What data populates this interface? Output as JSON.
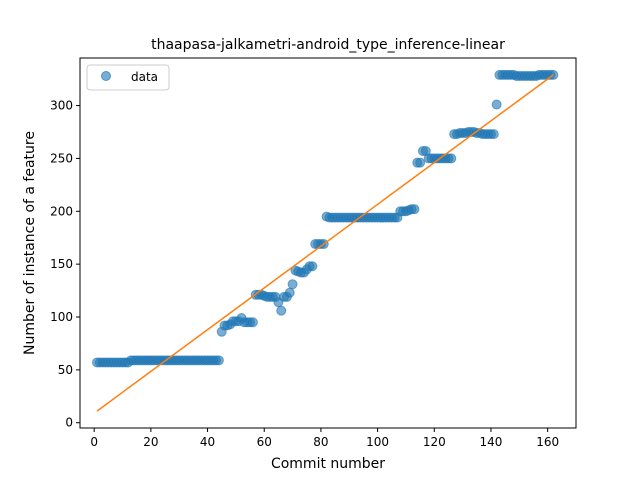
{
  "chart_data": {
    "type": "scatter",
    "title": "thaapasa-jalkametri-android_type_inference-linear",
    "xlabel": "Commit number",
    "ylabel": "Number of instance of a feature",
    "xlim": [
      -5,
      170
    ],
    "ylim": [
      -5,
      345
    ],
    "xticks": [
      0,
      20,
      40,
      60,
      80,
      100,
      120,
      140,
      160
    ],
    "yticks": [
      0,
      50,
      100,
      150,
      200,
      250,
      300
    ],
    "grid": false,
    "legend": {
      "placement": "top-left",
      "entries": [
        "data"
      ]
    },
    "colors": {
      "scatter": "#1f77b4",
      "fit": "#ff7f0e"
    },
    "fit_line": {
      "x": [
        1,
        162
      ],
      "y": [
        11,
        329
      ]
    },
    "series": [
      {
        "name": "data",
        "points": [
          [
            1,
            57
          ],
          [
            2,
            57
          ],
          [
            3,
            57
          ],
          [
            4,
            57
          ],
          [
            5,
            57
          ],
          [
            6,
            57
          ],
          [
            7,
            57
          ],
          [
            8,
            57
          ],
          [
            9,
            57
          ],
          [
            10,
            57
          ],
          [
            11,
            57
          ],
          [
            12,
            57
          ],
          [
            13,
            59
          ],
          [
            14,
            59
          ],
          [
            15,
            59
          ],
          [
            16,
            59
          ],
          [
            17,
            59
          ],
          [
            18,
            59
          ],
          [
            19,
            59
          ],
          [
            20,
            59
          ],
          [
            21,
            59
          ],
          [
            22,
            59
          ],
          [
            23,
            59
          ],
          [
            24,
            59
          ],
          [
            25,
            59
          ],
          [
            26,
            59
          ],
          [
            27,
            59
          ],
          [
            28,
            59
          ],
          [
            29,
            59
          ],
          [
            30,
            59
          ],
          [
            31,
            59
          ],
          [
            32,
            59
          ],
          [
            33,
            59
          ],
          [
            34,
            59
          ],
          [
            35,
            59
          ],
          [
            36,
            59
          ],
          [
            37,
            59
          ],
          [
            38,
            59
          ],
          [
            39,
            59
          ],
          [
            40,
            59
          ],
          [
            41,
            59
          ],
          [
            42,
            59
          ],
          [
            43,
            59
          ],
          [
            44,
            59
          ],
          [
            45,
            86
          ],
          [
            46,
            92
          ],
          [
            47,
            92
          ],
          [
            48,
            93
          ],
          [
            49,
            96
          ],
          [
            50,
            96
          ],
          [
            51,
            96
          ],
          [
            52,
            99
          ],
          [
            53,
            95
          ],
          [
            54,
            95
          ],
          [
            55,
            95
          ],
          [
            56,
            95
          ],
          [
            57,
            121
          ],
          [
            58,
            121
          ],
          [
            59,
            121
          ],
          [
            60,
            120
          ],
          [
            61,
            119
          ],
          [
            62,
            119
          ],
          [
            63,
            119
          ],
          [
            64,
            119
          ],
          [
            65,
            114
          ],
          [
            66,
            106
          ],
          [
            67,
            119
          ],
          [
            68,
            119
          ],
          [
            69,
            123
          ],
          [
            70,
            131
          ],
          [
            71,
            144
          ],
          [
            72,
            143
          ],
          [
            73,
            142
          ],
          [
            74,
            142
          ],
          [
            75,
            145
          ],
          [
            76,
            148
          ],
          [
            77,
            148
          ],
          [
            78,
            169
          ],
          [
            79,
            169
          ],
          [
            80,
            169
          ],
          [
            81,
            169
          ],
          [
            82,
            195
          ],
          [
            83,
            194
          ],
          [
            84,
            194
          ],
          [
            85,
            194
          ],
          [
            86,
            194
          ],
          [
            87,
            194
          ],
          [
            88,
            194
          ],
          [
            89,
            194
          ],
          [
            90,
            194
          ],
          [
            91,
            194
          ],
          [
            92,
            194
          ],
          [
            93,
            194
          ],
          [
            94,
            194
          ],
          [
            95,
            194
          ],
          [
            96,
            194
          ],
          [
            97,
            194
          ],
          [
            98,
            194
          ],
          [
            99,
            194
          ],
          [
            100,
            194
          ],
          [
            101,
            194
          ],
          [
            102,
            194
          ],
          [
            103,
            194
          ],
          [
            104,
            194
          ],
          [
            105,
            194
          ],
          [
            106,
            194
          ],
          [
            107,
            194
          ],
          [
            108,
            200
          ],
          [
            109,
            200
          ],
          [
            110,
            200
          ],
          [
            111,
            201
          ],
          [
            112,
            202
          ],
          [
            113,
            202
          ],
          [
            114,
            246
          ],
          [
            115,
            246
          ],
          [
            116,
            257
          ],
          [
            117,
            257
          ],
          [
            118,
            250
          ],
          [
            119,
            250
          ],
          [
            120,
            250
          ],
          [
            121,
            250
          ],
          [
            122,
            250
          ],
          [
            123,
            250
          ],
          [
            124,
            250
          ],
          [
            125,
            250
          ],
          [
            126,
            250
          ],
          [
            127,
            273
          ],
          [
            128,
            273
          ],
          [
            129,
            274
          ],
          [
            130,
            274
          ],
          [
            131,
            274
          ],
          [
            132,
            275
          ],
          [
            133,
            275
          ],
          [
            134,
            275
          ],
          [
            135,
            274
          ],
          [
            136,
            274
          ],
          [
            137,
            273
          ],
          [
            138,
            273
          ],
          [
            139,
            273
          ],
          [
            140,
            273
          ],
          [
            141,
            273
          ],
          [
            142,
            301
          ],
          [
            143,
            329
          ],
          [
            144,
            329
          ],
          [
            145,
            329
          ],
          [
            146,
            329
          ],
          [
            147,
            329
          ],
          [
            148,
            329
          ],
          [
            149,
            328
          ],
          [
            150,
            328
          ],
          [
            151,
            328
          ],
          [
            152,
            328
          ],
          [
            153,
            328
          ],
          [
            154,
            328
          ],
          [
            155,
            328
          ],
          [
            156,
            328
          ],
          [
            157,
            329
          ],
          [
            158,
            329
          ],
          [
            159,
            329
          ],
          [
            160,
            329
          ],
          [
            161,
            329
          ],
          [
            162,
            329
          ]
        ]
      }
    ]
  }
}
